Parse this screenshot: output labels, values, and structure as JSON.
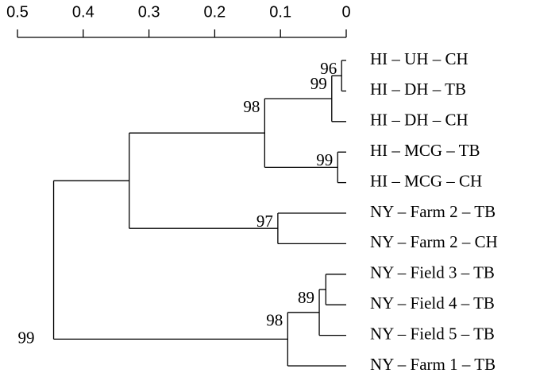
{
  "chart_data": {
    "type": "dendrogram",
    "xlim": [
      0.5,
      0
    ],
    "xticks": [
      0.5,
      0.4,
      0.3,
      0.2,
      0.1,
      0
    ],
    "tree": {
      "height": 0.445,
      "support": 99,
      "children": [
        {
          "height": 0.33,
          "children": [
            {
              "height": 0.124,
              "support": 98,
              "children": [
                {
                  "height": 0.022,
                  "support": 99,
                  "children": [
                    {
                      "height": 0.007,
                      "support": 96,
                      "children": [
                        {
                          "label": "HI – UH – CH"
                        },
                        {
                          "label": "HI – DH – TB"
                        }
                      ]
                    },
                    {
                      "label": "HI – DH – CH"
                    }
                  ]
                },
                {
                  "height": 0.013,
                  "support": 99,
                  "children": [
                    {
                      "label": "HI – MCG – TB"
                    },
                    {
                      "label": "HI – MCG – CH"
                    }
                  ]
                }
              ]
            },
            {
              "height": 0.104,
              "support": 97,
              "children": [
                {
                  "label": "NY – Farm 2 – TB"
                },
                {
                  "label": "NY – Farm 2 – CH"
                }
              ]
            }
          ]
        },
        {
          "height": 0.089,
          "support": 98,
          "children": [
            {
              "height": 0.041,
              "support": 89,
              "children": [
                {
                  "height": 0.031,
                  "children": [
                    {
                      "label": "NY – Field 3 – TB"
                    },
                    {
                      "label": "NY – Field 4 – TB"
                    }
                  ]
                },
                {
                  "label": "NY – Field 5 – TB"
                }
              ]
            },
            {
              "label": "NY – Farm 1 – TB"
            }
          ]
        }
      ]
    }
  }
}
